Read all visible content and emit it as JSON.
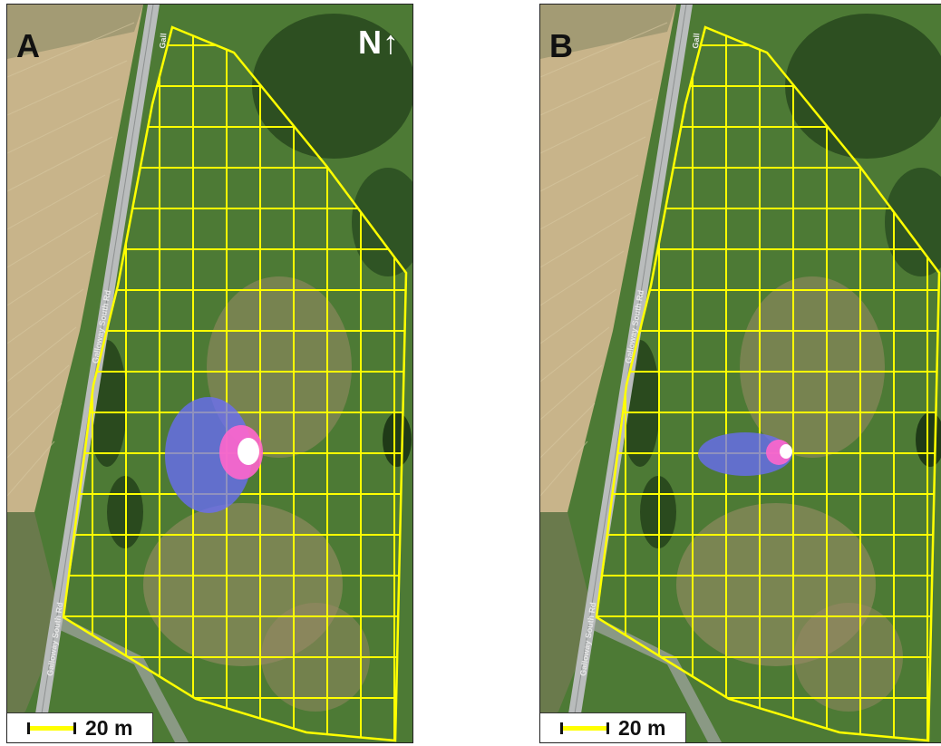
{
  "panels": [
    {
      "label": "A",
      "north": "N↑",
      "scale_text": "20 m",
      "road_labels": [
        "Galloway South Rd",
        "Galloway South Rd",
        "Gall"
      ],
      "overlay": "large-ellipse"
    },
    {
      "label": "B",
      "north": "",
      "scale_text": "20 m",
      "road_labels": [
        "Galloway South Rd",
        "Galloway South Rd",
        "Gall"
      ],
      "overlay": "small-ellipse"
    }
  ],
  "colors": {
    "grid": "#ffff00",
    "outer_ellipse": "#6a6cff",
    "inner_ellipse": "#ff66cc",
    "core": "#ffffff",
    "field": "#c8b48a",
    "vegetation": "#3f6e2e",
    "road": "#b9bcbc"
  }
}
